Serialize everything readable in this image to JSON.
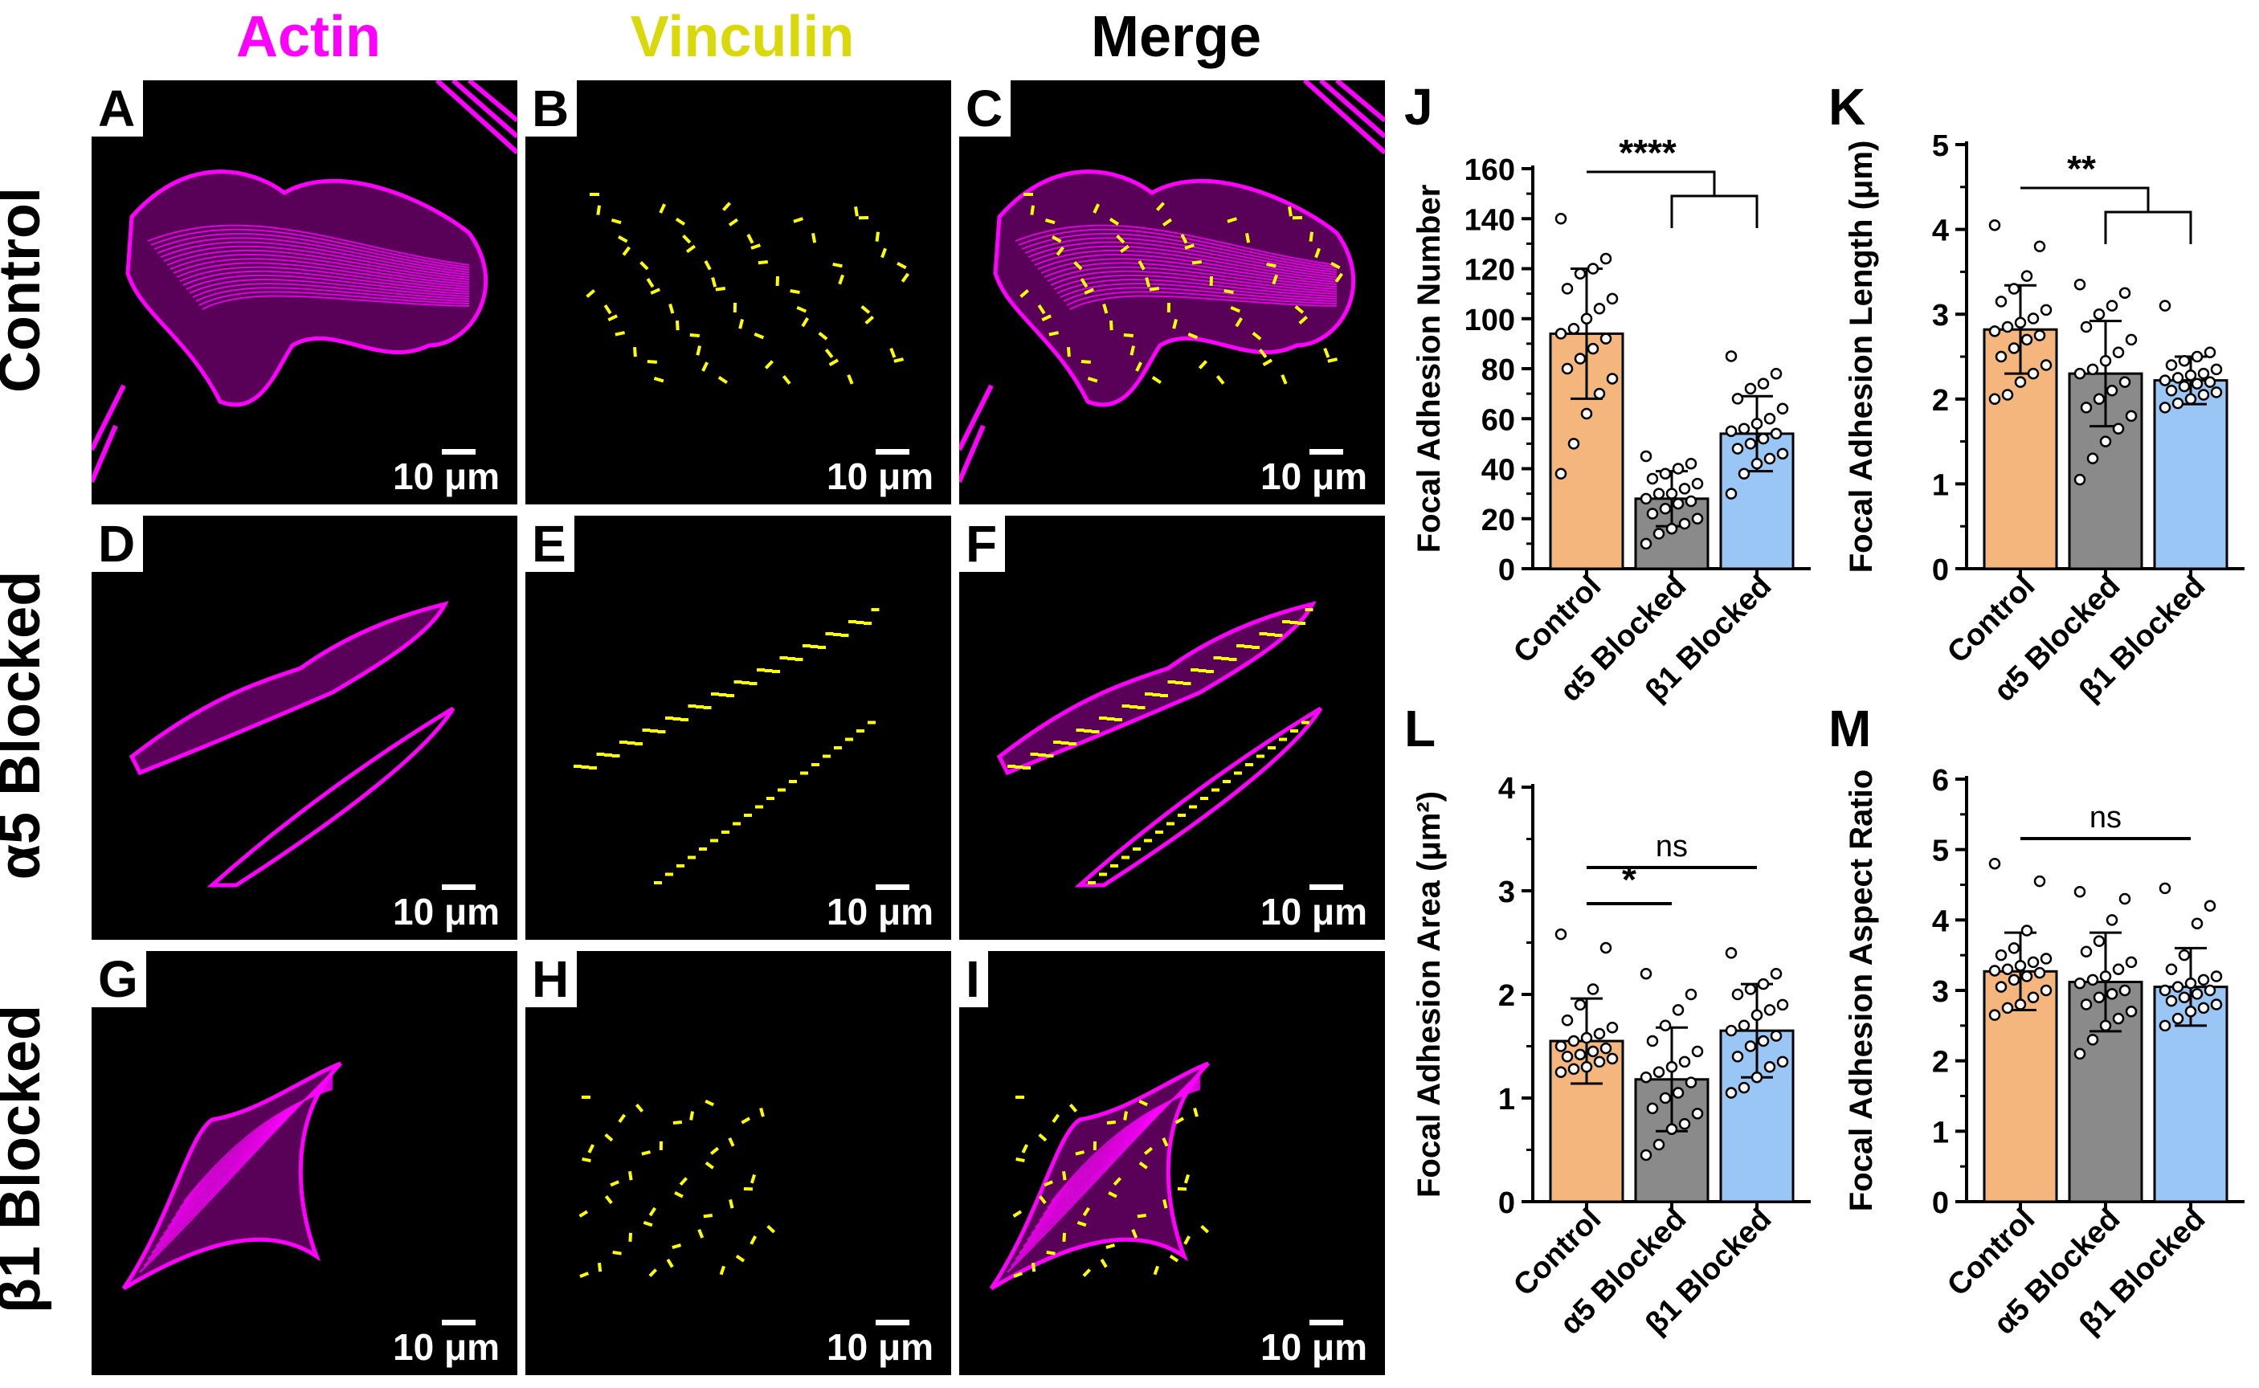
{
  "column_headers": [
    {
      "label": "Actin",
      "color": "#ff00ff"
    },
    {
      "label": "Vinculin",
      "color": "#d8d80a"
    },
    {
      "label": "Merge",
      "color": "#000000"
    }
  ],
  "row_headers": [
    "Control",
    "α5 Blocked",
    "β1 Blocked"
  ],
  "panels": [
    {
      "label": "A",
      "scale": "10 μm"
    },
    {
      "label": "B",
      "scale": "10 μm"
    },
    {
      "label": "C",
      "scale": "10 μm"
    },
    {
      "label": "D",
      "scale": "10 μm"
    },
    {
      "label": "E",
      "scale": "10 μm"
    },
    {
      "label": "F",
      "scale": "10 μm"
    },
    {
      "label": "G",
      "scale": "10 μm"
    },
    {
      "label": "H",
      "scale": "10 μm"
    },
    {
      "label": "I",
      "scale": "10 μm"
    }
  ],
  "colors": {
    "actin": "#ff00ff",
    "vinculin": "#ffff00",
    "control": "#f4b67d",
    "a5": "#8a8a8a",
    "b1": "#99c6f5"
  },
  "chart_data": [
    {
      "panel": "J",
      "type": "bar",
      "categories": [
        "Control",
        "α5 Blocked",
        "β1 Blocked"
      ],
      "ylabel": "Focal Adhesion Number",
      "ylim": [
        0,
        160
      ],
      "yticks": [
        0,
        20,
        40,
        60,
        80,
        100,
        120,
        140,
        160
      ],
      "values": [
        94,
        28,
        54
      ],
      "sd": [
        26,
        11,
        15
      ],
      "points": [
        [
          140,
          124,
          120,
          118,
          112,
          108,
          104,
          100,
          96,
          94,
          92,
          88,
          84,
          80,
          76,
          70,
          62,
          50,
          38
        ],
        [
          45,
          42,
          40,
          38,
          36,
          34,
          32,
          30,
          30,
          28,
          27,
          26,
          24,
          22,
          20,
          18,
          16,
          14,
          10
        ],
        [
          85,
          78,
          74,
          72,
          68,
          64,
          60,
          58,
          56,
          55,
          54,
          52,
          50,
          48,
          46,
          44,
          42,
          38,
          30
        ]
      ],
      "significance": [
        {
          "label": "****",
          "type": "bracket-group"
        }
      ]
    },
    {
      "panel": "K",
      "type": "bar",
      "categories": [
        "Control",
        "α5 Blocked",
        "β1 Blocked"
      ],
      "ylabel": "Focal Adhesion Length (μm)",
      "ylim": [
        0,
        5
      ],
      "yticks": [
        0,
        1,
        2,
        3,
        4,
        5
      ],
      "values": [
        2.82,
        2.3,
        2.22
      ],
      "sd": [
        0.52,
        0.62,
        0.28
      ],
      "points": [
        [
          4.05,
          3.8,
          3.45,
          3.3,
          3.15,
          3.05,
          2.95,
          2.9,
          2.85,
          2.8,
          2.75,
          2.7,
          2.6,
          2.5,
          2.4,
          2.3,
          2.2,
          2.05,
          2.0
        ],
        [
          3.35,
          3.25,
          3.1,
          3.0,
          2.85,
          2.7,
          2.55,
          2.45,
          2.35,
          2.3,
          2.2,
          2.1,
          2.0,
          1.9,
          1.8,
          1.65,
          1.5,
          1.3,
          1.05
        ],
        [
          3.1,
          2.55,
          2.5,
          2.45,
          2.4,
          2.35,
          2.3,
          2.28,
          2.25,
          2.22,
          2.2,
          2.18,
          2.15,
          2.1,
          2.08,
          2.05,
          2.0,
          1.95,
          1.9
        ]
      ],
      "significance": [
        {
          "label": "**",
          "type": "bracket-group"
        }
      ]
    },
    {
      "panel": "L",
      "type": "bar",
      "categories": [
        "Control",
        "α5 Blocked",
        "β1 Blocked"
      ],
      "ylabel": "Focal Adhesion Area (μm²)",
      "ylim": [
        0,
        4
      ],
      "yticks": [
        0,
        1,
        2,
        3,
        4
      ],
      "values": [
        1.55,
        1.18,
        1.65
      ],
      "sd": [
        0.41,
        0.5,
        0.45
      ],
      "points": [
        [
          2.58,
          2.45,
          2.05,
          1.9,
          1.75,
          1.68,
          1.62,
          1.58,
          1.55,
          1.5,
          1.48,
          1.45,
          1.42,
          1.4,
          1.38,
          1.35,
          1.3,
          1.28,
          1.25
        ],
        [
          2.2,
          2.0,
          1.85,
          1.7,
          1.55,
          1.45,
          1.35,
          1.3,
          1.25,
          1.2,
          1.15,
          1.05,
          1.0,
          0.9,
          0.85,
          0.75,
          0.7,
          0.55,
          0.45
        ],
        [
          2.4,
          2.2,
          2.1,
          2.05,
          2.0,
          1.9,
          1.85,
          1.8,
          1.7,
          1.65,
          1.6,
          1.55,
          1.5,
          1.4,
          1.35,
          1.3,
          1.2,
          1.1,
          1.05
        ]
      ],
      "significance": [
        {
          "label": "*",
          "from": 0,
          "to": 1
        },
        {
          "label": "ns",
          "from": 0,
          "to": 2
        }
      ]
    },
    {
      "panel": "M",
      "type": "bar",
      "categories": [
        "Control",
        "α5 Blocked",
        "β1 Blocked"
      ],
      "ylabel": "Focal Adhesion Aspect Ratio",
      "ylim": [
        0,
        6
      ],
      "yticks": [
        0,
        1,
        2,
        3,
        4,
        5,
        6
      ],
      "values": [
        3.27,
        3.12,
        3.05
      ],
      "sd": [
        0.55,
        0.7,
        0.55
      ],
      "points": [
        [
          4.8,
          4.55,
          3.85,
          3.6,
          3.5,
          3.45,
          3.4,
          3.35,
          3.3,
          3.28,
          3.25,
          3.2,
          3.15,
          3.05,
          3.0,
          2.9,
          2.8,
          2.75,
          2.65
        ],
        [
          4.4,
          4.3,
          4.0,
          3.7,
          3.55,
          3.4,
          3.3,
          3.2,
          3.15,
          3.1,
          3.0,
          2.95,
          2.9,
          2.8,
          2.7,
          2.6,
          2.5,
          2.3,
          2.1
        ],
        [
          4.45,
          4.2,
          3.95,
          3.5,
          3.3,
          3.2,
          3.15,
          3.1,
          3.05,
          3.0,
          3.0,
          2.95,
          2.9,
          2.85,
          2.8,
          2.75,
          2.7,
          2.6,
          2.5
        ]
      ],
      "significance": [
        {
          "label": "ns",
          "from": 0,
          "to": 2
        }
      ]
    }
  ]
}
